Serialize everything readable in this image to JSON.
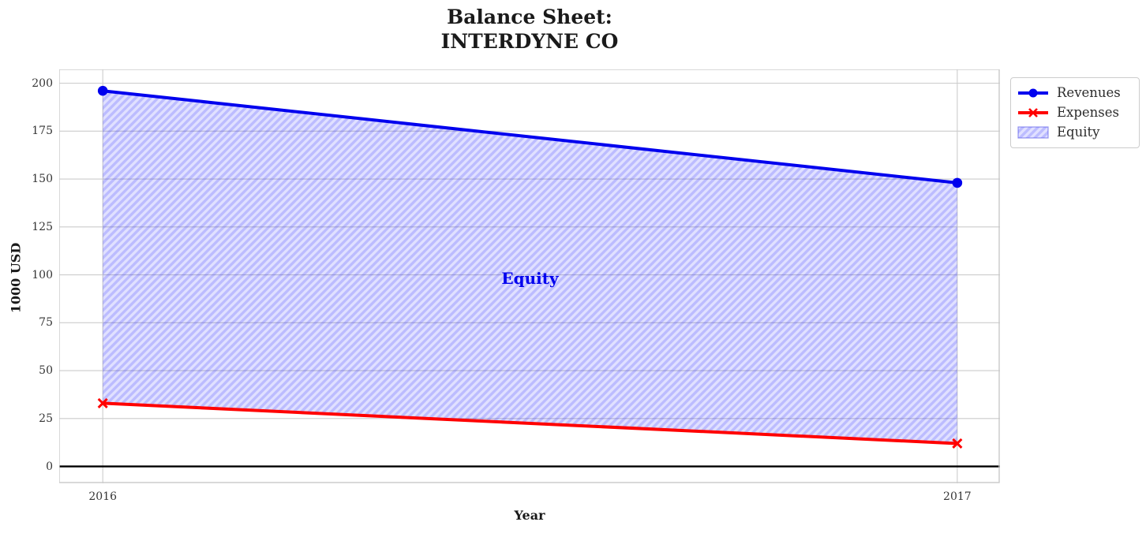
{
  "chart_data": {
    "type": "line",
    "title": "Balance Sheet:\nINTERDYNE CO",
    "xlabel": "Year",
    "ylabel": "1000 USD",
    "x": [
      2016,
      2017
    ],
    "series": [
      {
        "name": "Revenues",
        "values": [
          196,
          148
        ],
        "color": "#0000ee",
        "marker": "circle"
      },
      {
        "name": "Expenses",
        "values": [
          33,
          12
        ],
        "color": "#ff0000",
        "marker": "x"
      }
    ],
    "area": {
      "name": "Equity",
      "between": [
        "Revenues",
        "Expenses"
      ],
      "hatch": "/",
      "base_color": "rgba(0,0,255,0.12)",
      "hatch_color": "rgba(0,0,255,0.16)",
      "legend_border_color": "rgba(70,70,230,0.55)"
    },
    "annotation": {
      "text": "Equity",
      "x": 2016.5,
      "y": 98,
      "color": "#0000ee"
    },
    "xticks": [
      2016,
      2017
    ],
    "yticks": [
      0,
      25,
      50,
      75,
      100,
      125,
      150,
      175,
      200
    ],
    "xlim": [
      2015.949,
      2017.05
    ],
    "ylim": [
      -8.8,
      207.2
    ],
    "baseline": {
      "y": 0,
      "color": "#000000"
    },
    "grid": true,
    "grid_color": "#cccccc",
    "frame_color": "#c9c9c9",
    "legend_position": "upper-right-outside"
  }
}
